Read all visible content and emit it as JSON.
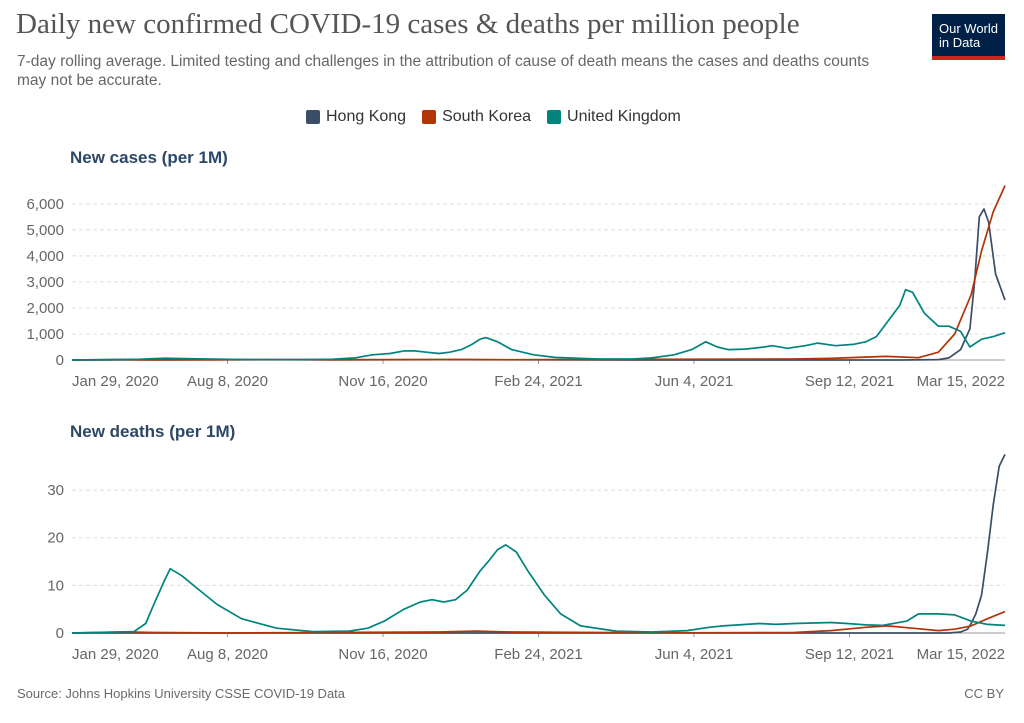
{
  "header": {
    "title": "Daily new confirmed COVID-19 cases & deaths per million people",
    "subtitle": "7-day rolling average. Limited testing and challenges in the attribution of cause of death means the cases and deaths counts may not be accurate.",
    "logo_line1": "Our World",
    "logo_line2": "in Data"
  },
  "footer": {
    "source": "Source: Johns Hopkins University CSSE COVID-19 Data",
    "license": "CC BY"
  },
  "colors": {
    "Hong Kong": "#3c4e66",
    "South Korea": "#b13507",
    "United Kingdom": "#00847e"
  },
  "chart_data": [
    {
      "type": "line",
      "title": "New cases (per 1M)",
      "legend_position": "top",
      "grid": true,
      "x_tick_labels": [
        "Jan 29, 2020",
        "Aug 8, 2020",
        "Nov 16, 2020",
        "Feb 24, 2021",
        "Jun 4, 2021",
        "Sep 12, 2021",
        "Mar 15, 2022"
      ],
      "y_ticks": [
        "0",
        "1,000",
        "2,000",
        "3,000",
        "4,000",
        "5,000",
        "6,000"
      ],
      "xlim": [
        "2020-01-22",
        "2022-03-30"
      ],
      "ylim": [
        0,
        6800
      ],
      "series": [
        {
          "name": "Hong Kong",
          "x": [
            "2020-01-22",
            "2020-04-01",
            "2020-07-25",
            "2020-09-01",
            "2020-12-01",
            "2021-06-01",
            "2021-12-31",
            "2022-02-01",
            "2022-02-10",
            "2022-02-20",
            "2022-02-28",
            "2022-03-04",
            "2022-03-08",
            "2022-03-12",
            "2022-03-16",
            "2022-03-22",
            "2022-03-30"
          ],
          "y": [
            0,
            2,
            14,
            3,
            12,
            0,
            0,
            15,
            80,
            400,
            1200,
            3000,
            5500,
            5800,
            5300,
            3300,
            2300
          ]
        },
        {
          "name": "South Korea",
          "x": [
            "2020-01-22",
            "2020-03-05",
            "2020-04-01",
            "2020-12-25",
            "2021-01-20",
            "2021-07-20",
            "2021-10-01",
            "2021-11-01",
            "2021-12-18",
            "2022-01-15",
            "2022-02-01",
            "2022-02-15",
            "2022-03-01",
            "2022-03-10",
            "2022-03-20",
            "2022-03-30"
          ],
          "y": [
            0,
            15,
            2,
            20,
            10,
            30,
            40,
            60,
            140,
            90,
            300,
            1000,
            2500,
            4200,
            5700,
            6700
          ]
        },
        {
          "name": "United Kingdom",
          "x": [
            "2020-01-22",
            "2020-03-20",
            "2020-04-10",
            "2020-05-15",
            "2020-06-15",
            "2020-08-01",
            "2020-09-01",
            "2020-09-20",
            "2020-10-05",
            "2020-10-20",
            "2020-11-01",
            "2020-11-10",
            "2020-11-20",
            "2020-12-01",
            "2020-12-10",
            "2020-12-20",
            "2020-12-29",
            "2021-01-05",
            "2021-01-10",
            "2021-01-20",
            "2021-02-01",
            "2021-02-20",
            "2021-03-10",
            "2021-04-15",
            "2021-05-15",
            "2021-06-01",
            "2021-06-20",
            "2021-07-05",
            "2021-07-17",
            "2021-07-27",
            "2021-08-05",
            "2021-08-20",
            "2021-09-05",
            "2021-09-12",
            "2021-09-25",
            "2021-10-10",
            "2021-10-21",
            "2021-11-05",
            "2021-11-20",
            "2021-12-01",
            "2021-12-10",
            "2021-12-20",
            "2021-12-30",
            "2022-01-04",
            "2022-01-10",
            "2022-01-20",
            "2022-02-01",
            "2022-02-10",
            "2022-02-20",
            "2022-02-28",
            "2022-03-10",
            "2022-03-20",
            "2022-03-30"
          ],
          "y": [
            0,
            30,
            70,
            40,
            20,
            10,
            30,
            80,
            200,
            250,
            350,
            350,
            300,
            250,
            300,
            400,
            600,
            800,
            860,
            700,
            400,
            200,
            100,
            40,
            40,
            80,
            200,
            400,
            700,
            500,
            400,
            420,
            500,
            550,
            450,
            550,
            650,
            550,
            600,
            700,
            900,
            1500,
            2100,
            2700,
            2600,
            1800,
            1300,
            1300,
            1100,
            500,
            800,
            900,
            1050
          ]
        }
      ]
    },
    {
      "type": "line",
      "title": "New deaths (per 1M)",
      "legend_position": "top",
      "grid": true,
      "x_tick_labels": [
        "Jan 29, 2020",
        "Aug 8, 2020",
        "Nov 16, 2020",
        "Feb 24, 2021",
        "Jun 4, 2021",
        "Sep 12, 2021",
        "Mar 15, 2022"
      ],
      "y_ticks": [
        "0",
        "10",
        "20",
        "30"
      ],
      "xlim": [
        "2020-01-22",
        "2022-03-30"
      ],
      "ylim": [
        0,
        38
      ],
      "series": [
        {
          "name": "Hong Kong",
          "x": [
            "2020-01-22",
            "2021-12-31",
            "2022-02-10",
            "2022-02-20",
            "2022-02-26",
            "2022-03-01",
            "2022-03-05",
            "2022-03-10",
            "2022-03-15",
            "2022-03-20",
            "2022-03-25",
            "2022-03-30"
          ],
          "y": [
            0,
            0,
            0,
            0.2,
            0.8,
            2,
            4,
            8,
            17,
            27,
            35,
            37.5
          ]
        },
        {
          "name": "South Korea",
          "x": [
            "2020-01-22",
            "2020-03-10",
            "2020-04-01",
            "2020-06-01",
            "2020-12-01",
            "2021-01-01",
            "2021-02-01",
            "2021-06-01",
            "2021-10-01",
            "2021-11-01",
            "2021-12-01",
            "2021-12-20",
            "2022-01-10",
            "2022-02-01",
            "2022-02-15",
            "2022-03-01",
            "2022-03-15",
            "2022-03-30"
          ],
          "y": [
            0,
            0.2,
            0.1,
            0.0,
            0.2,
            0.4,
            0.2,
            0.05,
            0.1,
            0.5,
            1.2,
            1.5,
            1.0,
            0.5,
            0.8,
            1.5,
            3.0,
            4.5
          ]
        },
        {
          "name": "United Kingdom",
          "x": [
            "2020-01-22",
            "2020-03-15",
            "2020-03-25",
            "2020-04-01",
            "2020-04-10",
            "2020-04-15",
            "2020-04-25",
            "2020-05-10",
            "2020-05-25",
            "2020-06-15",
            "2020-07-15",
            "2020-08-15",
            "2020-09-15",
            "2020-10-01",
            "2020-10-15",
            "2020-11-01",
            "2020-11-15",
            "2020-11-25",
            "2020-12-05",
            "2020-12-15",
            "2020-12-25",
            "2021-01-05",
            "2021-01-12",
            "2021-01-20",
            "2021-01-27",
            "2021-02-05",
            "2021-02-15",
            "2021-03-01",
            "2021-03-15",
            "2021-04-01",
            "2021-05-01",
            "2021-06-01",
            "2021-07-01",
            "2021-07-20",
            "2021-08-01",
            "2021-09-01",
            "2021-09-15",
            "2021-10-01",
            "2021-11-01",
            "2021-11-15",
            "2021-12-01",
            "2021-12-15",
            "2022-01-05",
            "2022-01-15",
            "2022-02-01",
            "2022-02-15",
            "2022-03-01",
            "2022-03-15",
            "2022-03-30"
          ],
          "y": [
            0,
            0.3,
            2,
            6,
            11,
            13.5,
            12,
            9,
            6,
            3,
            1,
            0.3,
            0.4,
            1,
            2.5,
            5,
            6.5,
            7,
            6.5,
            7,
            9,
            13,
            15,
            17.5,
            18.5,
            17,
            13,
            8,
            4,
            1.5,
            0.4,
            0.2,
            0.5,
            1.2,
            1.5,
            2,
            1.8,
            2,
            2.2,
            2,
            1.7,
            1.6,
            2.5,
            4,
            4,
            3.8,
            2.5,
            1.8,
            1.6
          ]
        }
      ]
    }
  ]
}
